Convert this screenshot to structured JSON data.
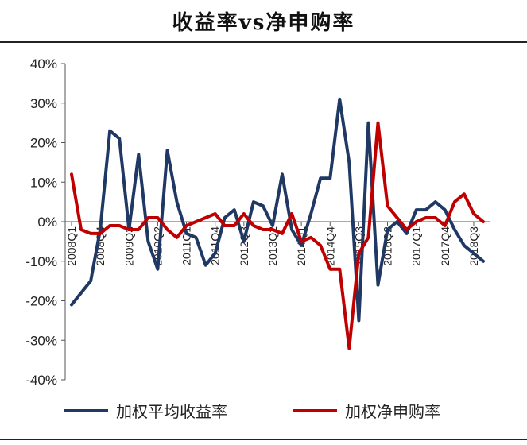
{
  "title": "收益率vs净申购率",
  "chart_data": {
    "type": "line",
    "title": "收益率vs净申购率",
    "ylim": [
      -40,
      40
    ],
    "yticks": [
      "40%",
      "30%",
      "20%",
      "10%",
      "0%",
      "-10%",
      "-20%",
      "-30%",
      "-40%"
    ],
    "ytick_values": [
      40,
      30,
      20,
      10,
      0,
      -10,
      -20,
      -30,
      -40
    ],
    "x": [
      "2008Q1",
      "2008Q2",
      "2008Q3",
      "2008Q4",
      "2009Q1",
      "2009Q2",
      "2009Q3",
      "2009Q4",
      "2010Q1",
      "2010Q2",
      "2010Q3",
      "2010Q4",
      "2011Q1",
      "2011Q2",
      "2011Q3",
      "2011Q4",
      "2012Q1",
      "2012Q2",
      "2012Q3",
      "2012Q4",
      "2013Q1",
      "2013Q2",
      "2013Q3",
      "2013Q4",
      "2014Q1",
      "2014Q2",
      "2014Q3",
      "2014Q4",
      "2015Q1",
      "2015Q2",
      "2015Q3",
      "2015Q4",
      "2016Q1",
      "2016Q2",
      "2016Q3",
      "2016Q4",
      "2017Q1",
      "2017Q2",
      "2017Q3",
      "2017Q4",
      "2018Q1",
      "2018Q2",
      "2018Q3",
      "2018Q4"
    ],
    "xtick_labels": [
      "2008Q1",
      "2008Q4",
      "2009Q3",
      "2010Q2",
      "2011Q1",
      "2011Q4",
      "2012Q3",
      "2013Q2",
      "2014Q1",
      "2014Q4",
      "2015Q3",
      "2016Q2",
      "2017Q1",
      "2017Q4",
      "2018Q3"
    ],
    "grid": false,
    "legend_position": "bottom",
    "series": [
      {
        "name": "加权平均收益率",
        "color": "#1f3864",
        "values": [
          -21,
          -18,
          -15,
          -2,
          23,
          21,
          -2,
          17,
          -5,
          -12,
          18,
          5,
          -3,
          -4,
          -11,
          -8,
          1,
          3,
          -5,
          5,
          4,
          -1,
          12,
          -2,
          -6,
          2,
          11,
          11,
          31,
          15,
          -25,
          25,
          -16,
          -2,
          0,
          -3,
          3,
          3,
          5,
          3,
          -2,
          -6,
          -8,
          -10
        ]
      },
      {
        "name": "加权净申购率",
        "color": "#c00000",
        "values": [
          12,
          -2,
          -3,
          -3,
          -1,
          -1,
          -2,
          -2,
          1,
          1,
          -2,
          -4,
          -1,
          0,
          1,
          2,
          -1,
          -1,
          2,
          -1,
          -2,
          -2,
          -3,
          2,
          -5,
          -4,
          -6,
          -12,
          -12,
          -32,
          -8,
          -4,
          25,
          4,
          1,
          -2,
          0,
          1,
          1,
          -1,
          5,
          7,
          2,
          0
        ]
      }
    ]
  }
}
